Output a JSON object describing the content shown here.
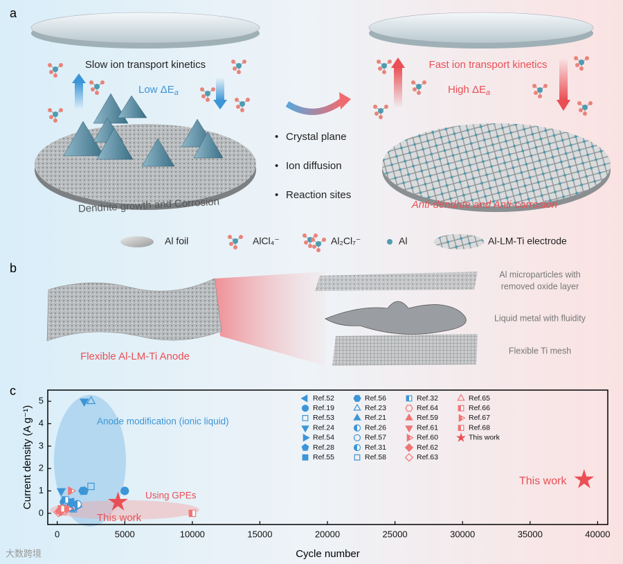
{
  "panel_a": {
    "label": "a",
    "left_caption": "Slow ion transport kinetics",
    "left_energy": [
      "Low ΔE",
      "a"
    ],
    "right_caption": "Fast ion transport kinetics",
    "right_energy": [
      "High ΔE",
      "a"
    ],
    "left_bottom": "Dendrite growth and Corrosion",
    "right_bottom": "Anti-dendrite and Anti-corrosion",
    "bullets": [
      "Crystal plane",
      "Ion diffusion",
      "Reaction sites"
    ],
    "legend": [
      "Al foil",
      "AlCl₄⁻",
      "Al₂Cl₇⁻",
      "Al",
      "Al-LM-Ti electrode"
    ]
  },
  "panel_b": {
    "label": "b",
    "anode": "Flexible Al-LM-Ti Anode",
    "layers": [
      [
        "Al microparticles with",
        "removed oxide layer"
      ],
      [
        "Liquid metal with fluidity"
      ],
      [
        "Flexible Ti mesh"
      ]
    ]
  },
  "panel_c_label": "c",
  "watermark": "大数跨境",
  "chart_data": {
    "type": "scatter",
    "xlabel": "Cycle number",
    "ylabel": "Current density (A g⁻¹)",
    "xlim": [
      -700,
      40750
    ],
    "ylim": [
      -0.5,
      5.5
    ],
    "xticks": [
      0,
      5000,
      10000,
      15000,
      20000,
      25000,
      30000,
      35000,
      40000
    ],
    "yticks": [
      0,
      1,
      2,
      3,
      4,
      5
    ],
    "annotations": [
      "Anode modification (ionic liquid)",
      "Using GPEs",
      "This work",
      "This work"
    ],
    "series": [
      {
        "name": "Ref.52",
        "color": "#3c95d6",
        "marker": "triangle-left",
        "fill": "full",
        "x": [
          1000
        ],
        "y": [
          0.5
        ]
      },
      {
        "name": "Ref.19",
        "color": "#3c95d6",
        "marker": "circle",
        "fill": "full",
        "x": [
          5000
        ],
        "y": [
          1
        ]
      },
      {
        "name": "Ref.53",
        "color": "#3c95d6",
        "marker": "square",
        "fill": "none",
        "x": [
          2500
        ],
        "y": [
          1.2
        ]
      },
      {
        "name": "Ref.24",
        "color": "#3c95d6",
        "marker": "triangle-down",
        "fill": "full",
        "x": [
          2000,
          300
        ],
        "y": [
          5,
          1
        ]
      },
      {
        "name": "Ref.54",
        "color": "#3c95d6",
        "marker": "triangle-right",
        "fill": "full",
        "x": [
          1500
        ],
        "y": [
          0.3
        ]
      },
      {
        "name": "Ref.28",
        "color": "#3c95d6",
        "marker": "pentagon",
        "fill": "full",
        "x": [
          2000
        ],
        "y": [
          1
        ]
      },
      {
        "name": "Ref.55",
        "color": "#3c95d6",
        "marker": "square",
        "fill": "full",
        "x": [
          1000
        ],
        "y": [
          0.5
        ]
      },
      {
        "name": "Ref.56",
        "color": "#3c95d6",
        "marker": "hexagon",
        "fill": "full",
        "x": [
          1900
        ],
        "y": [
          1
        ]
      },
      {
        "name": "Ref.23",
        "color": "#3c95d6",
        "marker": "triangle-up",
        "fill": "none",
        "x": [
          2500
        ],
        "y": [
          5
        ]
      },
      {
        "name": "Ref.21",
        "color": "#3c95d6",
        "marker": "triangle-up",
        "fill": "full",
        "x": [
          1000
        ],
        "y": [
          0.2
        ]
      },
      {
        "name": "Ref.26",
        "color": "#3c95d6",
        "marker": "circle",
        "fill": "half",
        "x": [
          500
        ],
        "y": [
          0.5
        ]
      },
      {
        "name": "Ref.57",
        "color": "#3c95d6",
        "marker": "circle",
        "fill": "none",
        "x": [
          800
        ],
        "y": [
          0.3
        ]
      },
      {
        "name": "Ref.31",
        "color": "#3c95d6",
        "marker": "circle",
        "fill": "half",
        "x": [
          1500
        ],
        "y": [
          0.4
        ]
      },
      {
        "name": "Ref.58",
        "color": "#3c95d6",
        "marker": "square",
        "fill": "none",
        "x": [
          1200
        ],
        "y": [
          0.2
        ]
      },
      {
        "name": "Ref.32",
        "color": "#3c95d6",
        "marker": "square",
        "fill": "half",
        "x": [
          600
        ],
        "y": [
          0.6
        ]
      },
      {
        "name": "Ref.64",
        "color": "#f07575",
        "marker": "hexagon",
        "fill": "none",
        "x": [
          500
        ],
        "y": [
          0.1
        ]
      },
      {
        "name": "Ref.59",
        "color": "#f07575",
        "marker": "triangle-up",
        "fill": "full",
        "x": [
          400
        ],
        "y": [
          0.2
        ]
      },
      {
        "name": "Ref.61",
        "color": "#f07575",
        "marker": "triangle-down",
        "fill": "full",
        "x": [
          300
        ],
        "y": [
          0.1
        ]
      },
      {
        "name": "Ref.60",
        "color": "#f07575",
        "marker": "triangle-right",
        "fill": "half",
        "x": [
          800
        ],
        "y": [
          0.2
        ]
      },
      {
        "name": "Ref.62",
        "color": "#f07575",
        "marker": "diamond",
        "fill": "full",
        "x": [
          200
        ],
        "y": [
          0.1
        ]
      },
      {
        "name": "Ref.63",
        "color": "#f07575",
        "marker": "diamond",
        "fill": "none",
        "x": [
          100
        ],
        "y": [
          0.05
        ]
      },
      {
        "name": "Ref.65",
        "color": "#f07575",
        "marker": "triangle-up",
        "fill": "none",
        "x": [
          200
        ],
        "y": [
          0.1
        ]
      },
      {
        "name": "Ref.66",
        "color": "#f07575",
        "marker": "square",
        "fill": "half",
        "x": [
          10000
        ],
        "y": [
          0
        ]
      },
      {
        "name": "Ref.67",
        "color": "#f07575",
        "marker": "triangle-right",
        "fill": "half",
        "x": [
          1000
        ],
        "y": [
          1
        ]
      },
      {
        "name": "Ref.68",
        "color": "#f07575",
        "marker": "square",
        "fill": "half",
        "x": [
          300
        ],
        "y": [
          0.2
        ]
      },
      {
        "name": "This work",
        "color": "#e94f55",
        "marker": "star",
        "fill": "full",
        "x": [
          4500,
          39000
        ],
        "y": [
          0.5,
          1.5
        ]
      }
    ]
  }
}
